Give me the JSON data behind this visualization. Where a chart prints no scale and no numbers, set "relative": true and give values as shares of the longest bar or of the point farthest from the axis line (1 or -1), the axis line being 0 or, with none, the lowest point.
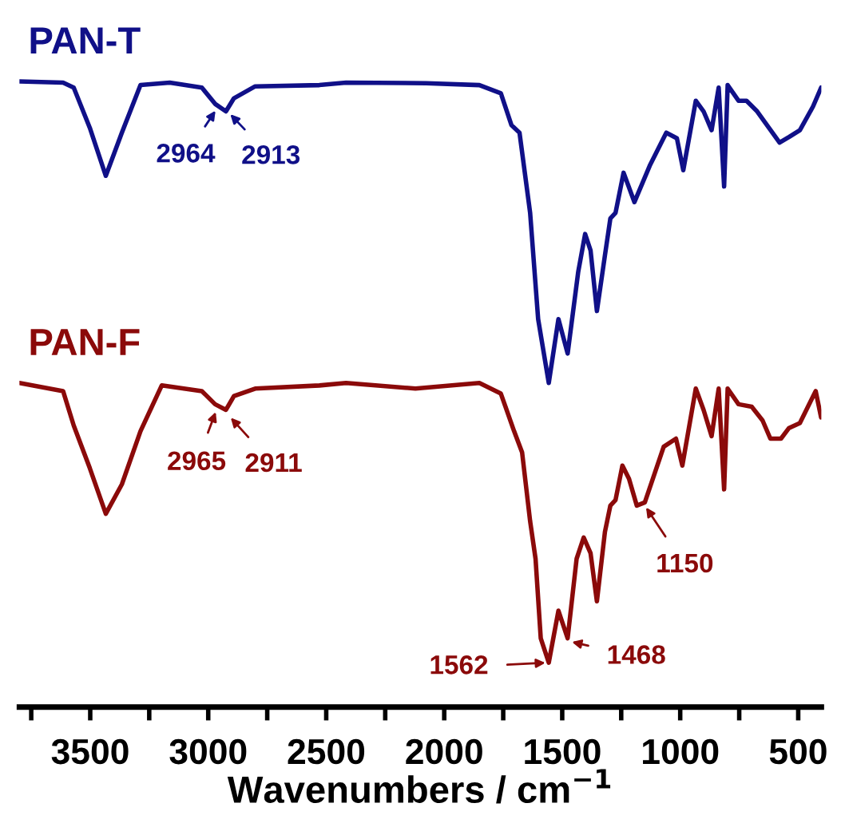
{
  "chart_data": {
    "type": "line",
    "relative": true,
    "xlabel": "Wavenumbers / cm$^{−1}$",
    "xlim": [
      3800,
      402
    ],
    "xticks": [
      {
        "value": 3750,
        "label": null
      },
      3500,
      {
        "value": 3250,
        "label": null
      },
      3000,
      {
        "value": 2750,
        "label": null
      },
      2500,
      {
        "value": 2250,
        "label": null
      },
      2000,
      {
        "value": 1750,
        "label": null
      },
      1500,
      {
        "value": 1250,
        "label": null
      },
      1000,
      {
        "value": 750,
        "label": null
      },
      500
    ],
    "series": [
      {
        "name": "PAN-T",
        "color": "#101088",
        "x": [
          3800,
          3615,
          3570,
          3502,
          3434,
          3366,
          3287,
          3163,
          3027,
          2971,
          2925,
          2891,
          2801,
          2529,
          2416,
          2077,
          1851,
          1760,
          1715,
          1681,
          1636,
          1602,
          1557,
          1516,
          1477,
          1432,
          1403,
          1380,
          1353,
          1319,
          1296,
          1274,
          1240,
          1194,
          1127,
          1059,
          1014,
          987,
          934,
          901,
          867,
          837,
          814,
          799,
          753,
          719,
          674,
          579,
          539,
          493,
          437,
          403
        ],
        "values": [
          1.0,
          0.998,
          0.99,
          0.926,
          0.849,
          0.918,
          0.994,
          0.998,
          0.99,
          0.964,
          0.952,
          0.973,
          0.992,
          0.994,
          0.998,
          0.997,
          0.994,
          0.981,
          0.93,
          0.918,
          0.79,
          0.62,
          0.518,
          0.62,
          0.565,
          0.696,
          0.756,
          0.73,
          0.633,
          0.722,
          0.781,
          0.79,
          0.854,
          0.807,
          0.867,
          0.918,
          0.909,
          0.858,
          0.969,
          0.952,
          0.922,
          0.99,
          0.832,
          0.994,
          0.969,
          0.969,
          0.952,
          0.902,
          0.911,
          0.922,
          0.96,
          0.99
        ]
      },
      {
        "name": "PAN-F",
        "color": "#8b0a0a",
        "x": [
          3800,
          3615,
          3570,
          3502,
          3434,
          3366,
          3287,
          3197,
          3027,
          2971,
          2925,
          2891,
          2801,
          2529,
          2416,
          2122,
          1851,
          1760,
          1704,
          1670,
          1636,
          1613,
          1591,
          1557,
          1516,
          1477,
          1439,
          1409,
          1380,
          1353,
          1319,
          1296,
          1274,
          1245,
          1217,
          1184,
          1150,
          1070,
          1018,
          991,
          934,
          901,
          867,
          837,
          814,
          799,
          753,
          697,
          651,
          618,
          573,
          539,
          493,
          426,
          403
        ],
        "values": [
          0.518,
          0.505,
          0.45,
          0.382,
          0.309,
          0.356,
          0.441,
          0.514,
          0.505,
          0.484,
          0.475,
          0.497,
          0.509,
          0.514,
          0.518,
          0.509,
          0.518,
          0.501,
          0.441,
          0.407,
          0.297,
          0.237,
          0.11,
          0.071,
          0.154,
          0.11,
          0.237,
          0.271,
          0.246,
          0.169,
          0.28,
          0.322,
          0.331,
          0.386,
          0.365,
          0.322,
          0.327,
          0.416,
          0.429,
          0.386,
          0.509,
          0.475,
          0.433,
          0.509,
          0.348,
          0.509,
          0.484,
          0.48,
          0.458,
          0.429,
          0.429,
          0.446,
          0.454,
          0.505,
          0.463
        ]
      }
    ],
    "annotations": [
      {
        "text": "2964",
        "x": 2964,
        "y": 0.956
      },
      {
        "text": "2913",
        "x": 2913,
        "y": 0.95
      },
      {
        "text": "2965",
        "x": 2965,
        "y": 0.475
      },
      {
        "text": "2911",
        "x": 2911,
        "y": 0.465
      },
      {
        "text": "1562",
        "x": 1562,
        "y": 0.071
      },
      {
        "text": "1468",
        "x": 1468,
        "y": 0.105
      },
      {
        "text": "1150",
        "x": 1150,
        "y": 0.322
      }
    ]
  }
}
